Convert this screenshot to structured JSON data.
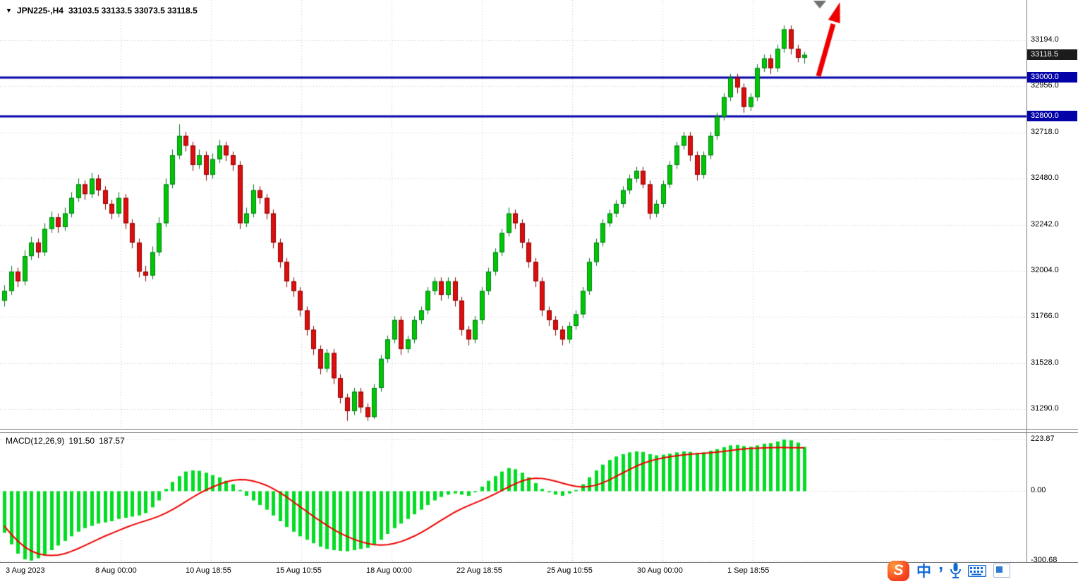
{
  "header": {
    "symbol_period": "JPN225-,H4",
    "ohlc": "33103.5 33133.5 33073.5 33118.5"
  },
  "price_axis": {
    "tags": [
      {
        "text": "33118.5",
        "type": "current",
        "value": 33118.5,
        "bg": "#1c1c1c"
      },
      {
        "text": "33000.0",
        "type": "level",
        "value": 33000,
        "bg": "#0202a8"
      },
      {
        "text": "32800.0",
        "type": "level",
        "value": 32800,
        "bg": "#0202a8"
      }
    ]
  },
  "indicator": {
    "label": "MACD(12,26,9)",
    "macd_value": "191.50",
    "signal_value": "187.57"
  },
  "taskbar": {
    "items": [
      {
        "name": "sogou-input",
        "glyph": "S"
      },
      {
        "name": "chinese-mode",
        "glyph": "中"
      },
      {
        "name": "punctuation",
        "glyph": "’"
      },
      {
        "name": "microphone"
      },
      {
        "name": "keyboard"
      },
      {
        "name": "input-window"
      },
      {
        "name": "ime-toolbar"
      }
    ]
  },
  "chart_data": [
    {
      "type": "candlestick",
      "title": "JPN225-,H4",
      "ylim": [
        31290,
        33300
      ],
      "y_ticks": [
        33194.0,
        32956.0,
        32718.0,
        32480.0,
        32242.0,
        32004.0,
        31766.0,
        31528.0,
        31290.0
      ],
      "x_ticks": [
        "3 Aug 2023",
        "8 Aug 00:00",
        "10 Aug 18:55",
        "15 Aug 10:55",
        "18 Aug 00:00",
        "22 Aug 18:55",
        "25 Aug 10:55",
        "30 Aug 00:00",
        "1 Sep 18:55"
      ],
      "colors": {
        "up": "#00c800",
        "down": "#dd0e0e",
        "up_border": "#007a1e",
        "down_border": "#8a0000",
        "grid": "#c4c4c4"
      },
      "annotations": [
        {
          "type": "horizontal-line",
          "value": 33000,
          "color": "#0202a8",
          "label": "33000.0"
        },
        {
          "type": "horizontal-line",
          "value": 32800,
          "color": "#0202a8",
          "label": "32800.0"
        },
        {
          "type": "current-price",
          "value": 33118.5,
          "label": "33118.5"
        },
        {
          "type": "arrow-up",
          "color": "#ee0000"
        }
      ],
      "ohlc": [
        [
          31850,
          31930,
          31820,
          31900
        ],
        [
          31900,
          32030,
          31880,
          32000
        ],
        [
          32000,
          32020,
          31920,
          31950
        ],
        [
          31950,
          32110,
          31930,
          32080
        ],
        [
          32080,
          32180,
          32060,
          32150
        ],
        [
          32150,
          32170,
          32070,
          32100
        ],
        [
          32100,
          32250,
          32080,
          32220
        ],
        [
          32220,
          32310,
          32200,
          32280
        ],
        [
          32280,
          32300,
          32200,
          32230
        ],
        [
          32230,
          32330,
          32210,
          32300
        ],
        [
          32300,
          32410,
          32280,
          32380
        ],
        [
          32380,
          32480,
          32360,
          32450
        ],
        [
          32450,
          32470,
          32370,
          32400
        ],
        [
          32400,
          32510,
          32380,
          32480
        ],
        [
          32480,
          32500,
          32390,
          32420
        ],
        [
          32420,
          32440,
          32320,
          32350
        ],
        [
          32350,
          32370,
          32270,
          32300
        ],
        [
          32300,
          32410,
          32280,
          32380
        ],
        [
          32380,
          32400,
          32220,
          32250
        ],
        [
          32250,
          32270,
          32120,
          32150
        ],
        [
          32150,
          32170,
          31970,
          32000
        ],
        [
          32000,
          32030,
          31950,
          31980
        ],
        [
          31980,
          32130,
          31960,
          32100
        ],
        [
          32100,
          32280,
          32080,
          32250
        ],
        [
          32250,
          32480,
          32230,
          32450
        ],
        [
          32450,
          32630,
          32430,
          32600
        ],
        [
          32600,
          32760,
          32580,
          32700
        ],
        [
          32700,
          32720,
          32620,
          32650
        ],
        [
          32650,
          32670,
          32520,
          32550
        ],
        [
          32550,
          32630,
          32530,
          32600
        ],
        [
          32600,
          32620,
          32470,
          32500
        ],
        [
          32500,
          32610,
          32480,
          32580
        ],
        [
          32580,
          32680,
          32560,
          32650
        ],
        [
          32650,
          32670,
          32570,
          32600
        ],
        [
          32600,
          32620,
          32520,
          32550
        ],
        [
          32550,
          32570,
          32220,
          32250
        ],
        [
          32250,
          32330,
          32230,
          32300
        ],
        [
          32300,
          32450,
          32280,
          32420
        ],
        [
          32420,
          32440,
          32350,
          32380
        ],
        [
          32380,
          32400,
          32270,
          32300
        ],
        [
          32300,
          32320,
          32120,
          32150
        ],
        [
          32150,
          32170,
          32020,
          32050
        ],
        [
          32050,
          32070,
          31920,
          31950
        ],
        [
          31950,
          31970,
          31870,
          31900
        ],
        [
          31900,
          31920,
          31770,
          31800
        ],
        [
          31800,
          31820,
          31670,
          31700
        ],
        [
          31700,
          31720,
          31570,
          31600
        ],
        [
          31600,
          31620,
          31470,
          31500
        ],
        [
          31500,
          31600,
          31480,
          31580
        ],
        [
          31580,
          31600,
          31420,
          31450
        ],
        [
          31450,
          31470,
          31320,
          31350
        ],
        [
          31350,
          31370,
          31230,
          31280
        ],
        [
          31280,
          31400,
          31260,
          31380
        ],
        [
          31380,
          31400,
          31270,
          31300
        ],
        [
          31300,
          31320,
          31230,
          31250
        ],
        [
          31250,
          31420,
          31240,
          31400
        ],
        [
          31400,
          31570,
          31380,
          31550
        ],
        [
          31550,
          31670,
          31530,
          31650
        ],
        [
          31650,
          31770,
          31630,
          31750
        ],
        [
          31750,
          31770,
          31570,
          31600
        ],
        [
          31600,
          31670,
          31580,
          31650
        ],
        [
          31650,
          31770,
          31630,
          31750
        ],
        [
          31750,
          31820,
          31730,
          31800
        ],
        [
          31800,
          31920,
          31780,
          31900
        ],
        [
          31900,
          31970,
          31880,
          31950
        ],
        [
          31950,
          31970,
          31850,
          31880
        ],
        [
          31880,
          31970,
          31860,
          31950
        ],
        [
          31950,
          31970,
          31820,
          31850
        ],
        [
          31850,
          31870,
          31670,
          31700
        ],
        [
          31700,
          31720,
          31620,
          31650
        ],
        [
          31650,
          31770,
          31630,
          31750
        ],
        [
          31750,
          31920,
          31730,
          31900
        ],
        [
          31900,
          32020,
          31880,
          32000
        ],
        [
          32000,
          32120,
          31980,
          32100
        ],
        [
          32100,
          32220,
          32080,
          32200
        ],
        [
          32200,
          32330,
          32180,
          32300
        ],
        [
          32300,
          32320,
          32220,
          32250
        ],
        [
          32250,
          32270,
          32120,
          32150
        ],
        [
          32150,
          32170,
          32020,
          32050
        ],
        [
          32050,
          32070,
          31920,
          31950
        ],
        [
          31950,
          31970,
          31770,
          31800
        ],
        [
          31800,
          31820,
          31720,
          31750
        ],
        [
          31750,
          31770,
          31670,
          31700
        ],
        [
          31700,
          31720,
          31620,
          31650
        ],
        [
          31650,
          31740,
          31630,
          31720
        ],
        [
          31720,
          31800,
          31700,
          31780
        ],
        [
          31780,
          31920,
          31760,
          31900
        ],
        [
          31900,
          32070,
          31880,
          32050
        ],
        [
          32050,
          32170,
          32030,
          32150
        ],
        [
          32150,
          32270,
          32130,
          32250
        ],
        [
          32250,
          32320,
          32230,
          32300
        ],
        [
          32300,
          32370,
          32280,
          32350
        ],
        [
          32350,
          32440,
          32330,
          32420
        ],
        [
          32420,
          32500,
          32400,
          32480
        ],
        [
          32480,
          32540,
          32460,
          32520
        ],
        [
          32520,
          32540,
          32430,
          32450
        ],
        [
          32450,
          32470,
          32270,
          32300
        ],
        [
          32300,
          32370,
          32280,
          32350
        ],
        [
          32350,
          32470,
          32330,
          32450
        ],
        [
          32450,
          32570,
          32430,
          32550
        ],
        [
          32550,
          32670,
          32530,
          32650
        ],
        [
          32650,
          32720,
          32630,
          32700
        ],
        [
          32700,
          32720,
          32570,
          32600
        ],
        [
          32600,
          32620,
          32470,
          32500
        ],
        [
          32500,
          32620,
          32480,
          32600
        ],
        [
          32600,
          32720,
          32580,
          32700
        ],
        [
          32700,
          32820,
          32680,
          32800
        ],
        [
          32800,
          32920,
          32780,
          32900
        ],
        [
          32900,
          33020,
          32880,
          33000
        ],
        [
          33000,
          33020,
          32920,
          32950
        ],
        [
          32950,
          32970,
          32820,
          32850
        ],
        [
          32850,
          32920,
          32830,
          32900
        ],
        [
          32900,
          33070,
          32880,
          33050
        ],
        [
          33050,
          33120,
          33030,
          33100
        ],
        [
          33100,
          33120,
          33020,
          33050
        ],
        [
          33050,
          33170,
          33030,
          33150
        ],
        [
          33150,
          33270,
          33130,
          33250
        ],
        [
          33250,
          33270,
          33120,
          33150
        ],
        [
          33150,
          33170,
          33080,
          33103.5
        ],
        [
          33103.5,
          33133.5,
          33073.5,
          33118.5
        ]
      ]
    },
    {
      "type": "bar",
      "name": "MACD(12,26,9)",
      "ylim": [
        -300.68,
        223.87
      ],
      "y_ticks": [
        "223.87",
        "0.00",
        "-300.68"
      ],
      "colors": {
        "histogram": "#00dd22",
        "signal": "#ee0000"
      },
      "histogram": [
        -180,
        -230,
        -270,
        -295,
        -300,
        -290,
        -275,
        -255,
        -235,
        -215,
        -195,
        -175,
        -160,
        -150,
        -140,
        -135,
        -130,
        -120,
        -115,
        -110,
        -105,
        -95,
        -70,
        -40,
        10,
        40,
        65,
        85,
        90,
        88,
        80,
        70,
        60,
        45,
        30,
        5,
        -20,
        -40,
        -60,
        -80,
        -105,
        -130,
        -155,
        -175,
        -195,
        -210,
        -225,
        -240,
        -250,
        -255,
        -258,
        -260,
        -255,
        -250,
        -245,
        -230,
        -210,
        -185,
        -160,
        -140,
        -120,
        -100,
        -80,
        -60,
        -40,
        -25,
        -15,
        -10,
        -15,
        -20,
        -5,
        20,
        45,
        65,
        85,
        100,
        95,
        80,
        60,
        35,
        10,
        -5,
        -15,
        -20,
        -10,
        5,
        30,
        60,
        90,
        115,
        135,
        150,
        160,
        168,
        172,
        170,
        160,
        155,
        158,
        162,
        168,
        172,
        170,
        165,
        168,
        175,
        182,
        190,
        198,
        200,
        195,
        192,
        198,
        205,
        208,
        215,
        223,
        220,
        210,
        191.5
      ],
      "signal": [
        -150,
        -185,
        -215,
        -240,
        -258,
        -270,
        -276,
        -278,
        -276,
        -270,
        -260,
        -248,
        -235,
        -221,
        -207,
        -194,
        -182,
        -170,
        -158,
        -147,
        -137,
        -128,
        -119,
        -108,
        -95,
        -80,
        -63,
        -45,
        -27,
        -10,
        5,
        18,
        30,
        40,
        47,
        50,
        49,
        44,
        36,
        25,
        11,
        -6,
        -25,
        -46,
        -67,
        -88,
        -109,
        -129,
        -148,
        -166,
        -182,
        -196,
        -208,
        -218,
        -226,
        -231,
        -233,
        -231,
        -226,
        -218,
        -207,
        -194,
        -179,
        -162,
        -144,
        -126,
        -108,
        -91,
        -76,
        -63,
        -51,
        -39,
        -26,
        -12,
        3,
        18,
        32,
        44,
        52,
        56,
        55,
        50,
        43,
        35,
        27,
        21,
        18,
        20,
        26,
        36,
        49,
        64,
        79,
        94,
        108,
        120,
        130,
        138,
        144,
        149,
        153,
        157,
        160,
        162,
        164,
        166,
        169,
        172,
        176,
        180,
        183,
        185,
        186,
        187,
        188,
        189,
        189,
        188,
        188,
        187.57
      ]
    }
  ]
}
